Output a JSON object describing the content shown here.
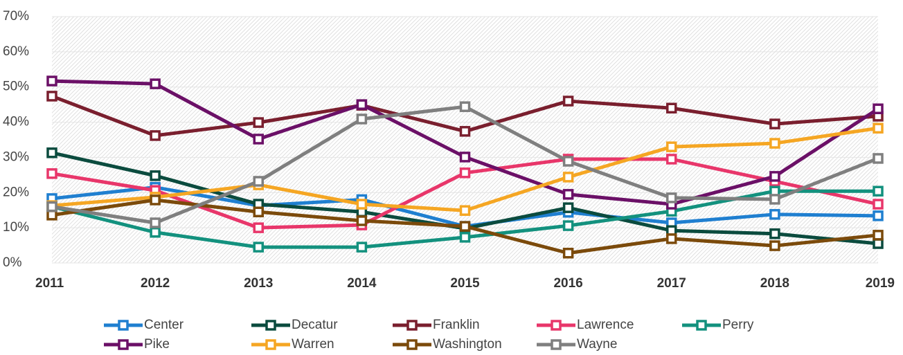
{
  "chart_data": {
    "type": "line",
    "categories": [
      "2011",
      "2012",
      "2013",
      "2014",
      "2015",
      "2016",
      "2017",
      "2018",
      "2019"
    ],
    "ylim": [
      0,
      70
    ],
    "yticks": [
      {
        "value": 0,
        "label": "0%"
      },
      {
        "value": 10,
        "label": "10%"
      },
      {
        "value": 20,
        "label": "20%"
      },
      {
        "value": 30,
        "label": "30%"
      },
      {
        "value": 40,
        "label": "40%"
      },
      {
        "value": 50,
        "label": "50%"
      },
      {
        "value": 60,
        "label": "60%"
      },
      {
        "value": 70,
        "label": "70%"
      }
    ],
    "grid": true,
    "legend": "bottom",
    "series": [
      {
        "name": "Center",
        "color": "#1f7fd0",
        "values": [
          18.3,
          21.5,
          16.3,
          18,
          10.4,
          14.4,
          11.4,
          13.8,
          13.4
        ]
      },
      {
        "name": "Decatur",
        "color": "#0b4b3e",
        "values": [
          31.3,
          24.8,
          16.7,
          14.5,
          9.8,
          15.7,
          9.2,
          8.3,
          5.5
        ]
      },
      {
        "name": "Franklin",
        "color": "#7a1f2e",
        "values": [
          47.4,
          36.2,
          39.9,
          44.8,
          37.4,
          46,
          44,
          39.5,
          41.7
        ]
      },
      {
        "name": "Lawrence",
        "color": "#e8366a",
        "values": [
          25.4,
          20.6,
          10,
          10.8,
          25.6,
          29.5,
          29.5,
          23.2,
          16.7
        ]
      },
      {
        "name": "Perry",
        "color": "#13917e",
        "values": [
          16,
          8.7,
          4.5,
          4.5,
          7.3,
          10.6,
          14.7,
          20.4,
          20.4
        ]
      },
      {
        "name": "Pike",
        "color": "#6b1067",
        "values": [
          51.7,
          50.9,
          35.2,
          45,
          30.1,
          19.5,
          16.7,
          24.6,
          43.8
        ]
      },
      {
        "name": "Warren",
        "color": "#f5a623",
        "values": [
          16.3,
          18.7,
          22.2,
          16.7,
          14.9,
          24.4,
          33,
          34,
          38.3
        ]
      },
      {
        "name": "Washington",
        "color": "#7b4a0b",
        "values": [
          13.6,
          17.9,
          14.5,
          12,
          10.4,
          2.8,
          6.9,
          4.9,
          7.9
        ]
      },
      {
        "name": "Wayne",
        "color": "#7f7f7f",
        "values": [
          16,
          11.4,
          23.2,
          40.9,
          44.4,
          28.9,
          18.5,
          18.1,
          29.7
        ]
      }
    ]
  }
}
